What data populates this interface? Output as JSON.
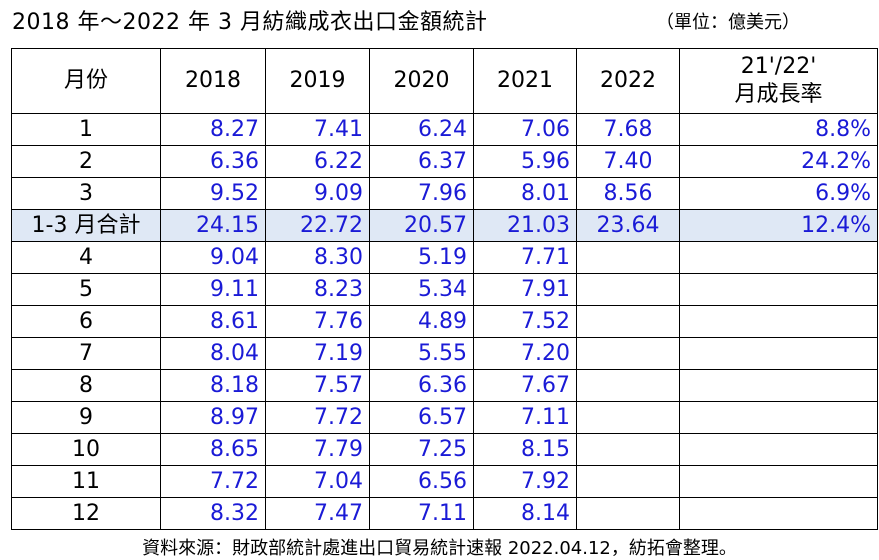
{
  "title": "2018 年～2022 年 3 月紡織成衣出口金額統計",
  "unit": "（單位：億美元）",
  "table": {
    "headers": [
      "月份",
      "2018",
      "2019",
      "2020",
      "2021",
      "2022"
    ],
    "ratio_header_line1": "21'/22'",
    "ratio_header_line2": "月成長率",
    "rows": [
      {
        "month": "1",
        "y2018": "8.27",
        "y2019": "7.41",
        "y2020": "6.24",
        "y2021": "7.06",
        "y2022": "7.68",
        "ratio": "8.8%"
      },
      {
        "month": "2",
        "y2018": "6.36",
        "y2019": "6.22",
        "y2020": "6.37",
        "y2021": "5.96",
        "y2022": "7.40",
        "ratio": "24.2%"
      },
      {
        "month": "3",
        "y2018": "9.52",
        "y2019": "9.09",
        "y2020": "7.96",
        "y2021": "8.01",
        "y2022": "8.56",
        "ratio": "6.9%"
      },
      {
        "month": "1-3 月合計",
        "y2018": "24.15",
        "y2019": "22.72",
        "y2020": "20.57",
        "y2021": "21.03",
        "y2022": "23.64",
        "ratio": "12.4%"
      },
      {
        "month": "4",
        "y2018": "9.04",
        "y2019": "8.30",
        "y2020": "5.19",
        "y2021": "7.71",
        "y2022": "",
        "ratio": ""
      },
      {
        "month": "5",
        "y2018": "9.11",
        "y2019": "8.23",
        "y2020": "5.34",
        "y2021": "7.91",
        "y2022": "",
        "ratio": ""
      },
      {
        "month": "6",
        "y2018": "8.61",
        "y2019": "7.76",
        "y2020": "4.89",
        "y2021": "7.52",
        "y2022": "",
        "ratio": ""
      },
      {
        "month": "7",
        "y2018": "8.04",
        "y2019": "7.19",
        "y2020": "5.55",
        "y2021": "7.20",
        "y2022": "",
        "ratio": ""
      },
      {
        "month": "8",
        "y2018": "8.18",
        "y2019": "7.57",
        "y2020": "6.36",
        "y2021": "7.67",
        "y2022": "",
        "ratio": ""
      },
      {
        "month": "9",
        "y2018": "8.97",
        "y2019": "7.72",
        "y2020": "6.57",
        "y2021": "7.11",
        "y2022": "",
        "ratio": ""
      },
      {
        "month": "10",
        "y2018": "8.65",
        "y2019": "7.79",
        "y2020": "7.25",
        "y2021": "8.15",
        "y2022": "",
        "ratio": ""
      },
      {
        "month": "11",
        "y2018": "7.72",
        "y2019": "7.04",
        "y2020": "6.56",
        "y2021": "7.92",
        "y2022": "",
        "ratio": ""
      },
      {
        "month": "12",
        "y2018": "8.32",
        "y2019": "7.47",
        "y2020": "7.11",
        "y2021": "8.14",
        "y2022": "",
        "ratio": ""
      }
    ]
  },
  "source": "資料來源：財政部統計處進出口貿易統計速報 2022.04.12，紡拓會整理。",
  "colors": {
    "value_text": "#1a1ad6",
    "summary_row_bg": "#dfe8f5",
    "border": "#000000"
  }
}
